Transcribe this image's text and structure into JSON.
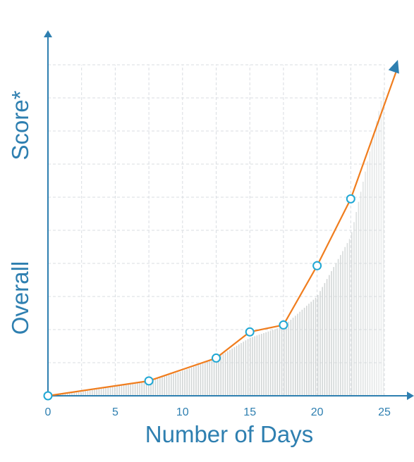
{
  "chart_data": {
    "type": "line",
    "title": "",
    "xlabel": "Number of Days",
    "ylabel_top": "Score*",
    "ylabel_bottom": "Overall",
    "xlim": [
      0,
      25
    ],
    "ylim": [
      0,
      100
    ],
    "x_ticks": [
      "0",
      "5",
      "10",
      "15",
      "20",
      "25"
    ],
    "grid": true,
    "legend": "none",
    "series": [
      {
        "x": [
          0,
          7.5,
          12.5,
          15,
          17.5,
          20,
          22.5
        ],
        "y": [
          0,
          4.5,
          11.4,
          19.3,
          21.4,
          39.3,
          59.5
        ],
        "arrow_to": {
          "x": 26,
          "y": 101.5
        }
      }
    ],
    "area_curve": {
      "x": [
        0,
        2.5,
        5,
        7.5,
        10,
        12.5,
        15,
        17.5,
        20,
        22.5,
        25
      ],
      "y": [
        0,
        1.2,
        2.8,
        4.5,
        7.5,
        11.4,
        17.5,
        21,
        30,
        48,
        93.5
      ]
    },
    "colors": {
      "axis": "#2e7fb0",
      "line": "#f07d1e",
      "marker_stroke": "#1fa7d4",
      "marker_fill": "#ffffff",
      "grid": "#d9dde2",
      "hatch": "#d2d6d6",
      "tick_text": "#2e7fb0"
    }
  }
}
